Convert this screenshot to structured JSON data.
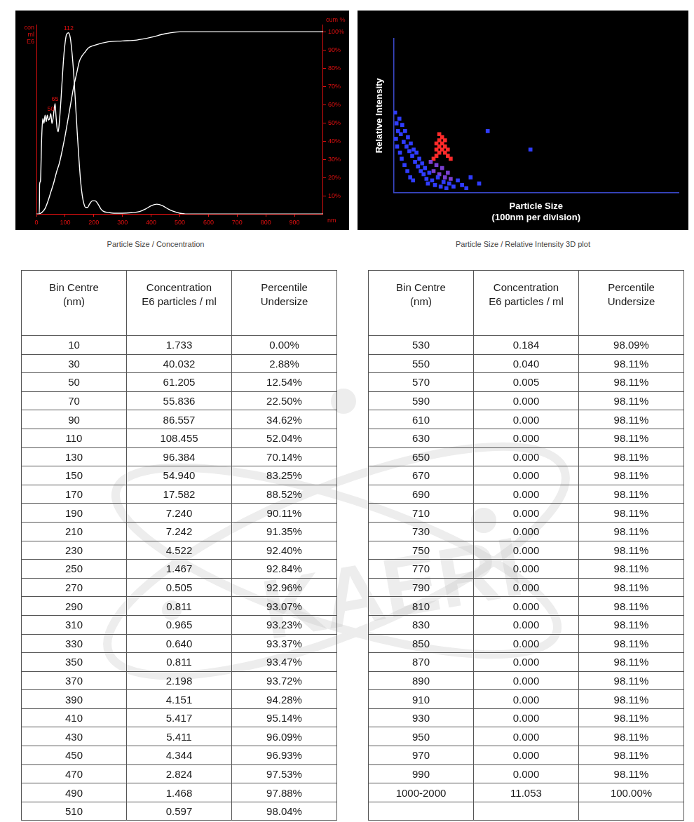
{
  "chart_data": [
    {
      "type": "line",
      "title": "Particle Size / Concentration",
      "ylabel": "con ml E6",
      "y2label": "cum %",
      "xlabel": "nm",
      "xlim": [
        0,
        1000
      ],
      "xticks": [
        0,
        100,
        200,
        300,
        400,
        500,
        600,
        700,
        800,
        900
      ],
      "ylim": [
        0,
        115
      ],
      "yticks": [],
      "y2lim": [
        0,
        104
      ],
      "y2ticks": [
        {
          "value": 10,
          "label": "10%"
        },
        {
          "value": 20,
          "label": "20%"
        },
        {
          "value": 30,
          "label": "30%"
        },
        {
          "value": 40,
          "label": "40%"
        },
        {
          "value": 50,
          "label": "50%"
        },
        {
          "value": 60,
          "label": "60%"
        },
        {
          "value": 70,
          "label": "70%"
        },
        {
          "value": 80,
          "label": "80%"
        },
        {
          "value": 90,
          "label": "90%"
        },
        {
          "value": 100,
          "label": "100%"
        }
      ],
      "grid": false,
      "series": [
        {
          "color": "#ffffff",
          "x": [
            0,
            10,
            11,
            14,
            18,
            22,
            26,
            30,
            34,
            38,
            42,
            46,
            50,
            54,
            58,
            62,
            65,
            68,
            72,
            76,
            80,
            85,
            90,
            95,
            100,
            105,
            112,
            118,
            124,
            130,
            136,
            142,
            148,
            154,
            160,
            166,
            172,
            178,
            185,
            195,
            205,
            215,
            225,
            235,
            250,
            270,
            300,
            330,
            360,
            380,
            400,
            420,
            440,
            460,
            480,
            500,
            520,
            1000
          ],
          "values": [
            0,
            0,
            18,
            20,
            45,
            58,
            55,
            60,
            56,
            60,
            57,
            58,
            61,
            55,
            58,
            64,
            67,
            60,
            52,
            50,
            56,
            68,
            82,
            95,
            104,
            109,
            110,
            107,
            98,
            85,
            68,
            50,
            34,
            20,
            11,
            6,
            4,
            4,
            6,
            8,
            8,
            6,
            3,
            1.5,
            1,
            0.5,
            0.5,
            0.8,
            1.5,
            3,
            5,
            6,
            5,
            3,
            1.5,
            0.5,
            0,
            0
          ]
        },
        {
          "color": "#ffffff",
          "axis": "y2",
          "x": [
            10,
            20,
            30,
            40,
            50,
            60,
            70,
            80,
            90,
            100,
            110,
            120,
            130,
            140,
            150,
            160,
            170,
            180,
            200,
            250,
            300,
            350,
            400,
            450,
            500,
            1000
          ],
          "values": [
            0,
            1,
            3,
            7,
            12,
            17,
            23,
            28,
            35,
            43,
            52,
            61,
            70,
            77,
            84,
            87,
            89,
            91,
            92.5,
            94.5,
            95,
            95.5,
            97,
            99,
            100,
            100
          ]
        }
      ],
      "annotations": [
        {
          "x": 112,
          "y": 110,
          "text": "112"
        },
        {
          "x": 65,
          "y": 67,
          "text": "65"
        },
        {
          "x": 50,
          "y": 61,
          "text": "50"
        }
      ]
    },
    {
      "type": "scatter",
      "title": "Particle Size / Relative Intensity 3D plot",
      "xlabel": [
        "Particle Size",
        "(100nm per division)"
      ],
      "ylabel": "Relative Intensity",
      "xlim": [
        0,
        1000
      ],
      "ylim": [
        0,
        100
      ],
      "tick_labels": false,
      "grid": false,
      "series": [
        {
          "color": "#2f3cff",
          "marker": "square",
          "x": [
            5,
            10,
            15,
            8,
            20,
            25,
            12,
            30,
            35,
            22,
            40,
            45,
            28,
            50,
            55,
            38,
            60,
            65,
            48,
            70,
            75,
            58,
            80,
            85,
            68,
            90,
            95,
            100,
            105,
            110,
            115,
            120,
            125,
            135,
            145,
            155,
            165,
            175,
            185,
            195,
            210,
            225,
            240,
            255,
            330,
            480,
            300,
            270
          ],
          "values": [
            52,
            45,
            40,
            35,
            48,
            38,
            30,
            44,
            33,
            26,
            40,
            30,
            22,
            36,
            27,
            18,
            32,
            24,
            14,
            28,
            20,
            10,
            26,
            17,
            8,
            22,
            14,
            19,
            12,
            16,
            9,
            6,
            13,
            8,
            5,
            10,
            4,
            7,
            3,
            6,
            4,
            8,
            5,
            3,
            40,
            28,
            6,
            10
          ]
        },
        {
          "color": "#7a3fd0",
          "marker": "square",
          "x": [
            130,
            140,
            150,
            160,
            170,
            180,
            190,
            200
          ],
          "values": [
            20,
            14,
            18,
            12,
            16,
            10,
            13,
            9
          ]
        },
        {
          "color": "#ff2a2a",
          "marker": "square",
          "x": [
            140,
            150,
            150,
            150,
            160,
            160,
            160,
            160,
            170,
            170,
            170,
            180,
            180,
            180,
            190,
            190,
            200
          ],
          "values": [
            22,
            24,
            28,
            32,
            26,
            30,
            34,
            38,
            28,
            32,
            36,
            26,
            30,
            34,
            24,
            28,
            22
          ]
        }
      ]
    }
  ],
  "tables": [
    {
      "columns": [
        [
          "Bin Centre",
          "(nm)"
        ],
        [
          "Concentration",
          "E6 particles / ml"
        ],
        [
          "Percentile",
          "Undersize"
        ]
      ],
      "rows": [
        [
          "10",
          "1.733",
          "0.00%"
        ],
        [
          "30",
          "40.032",
          "2.88%"
        ],
        [
          "50",
          "61.205",
          "12.54%"
        ],
        [
          "70",
          "55.836",
          "22.50%"
        ],
        [
          "90",
          "86.557",
          "34.62%"
        ],
        [
          "110",
          "108.455",
          "52.04%"
        ],
        [
          "130",
          "96.384",
          "70.14%"
        ],
        [
          "150",
          "54.940",
          "83.25%"
        ],
        [
          "170",
          "17.582",
          "88.52%"
        ],
        [
          "190",
          "7.240",
          "90.11%"
        ],
        [
          "210",
          "7.242",
          "91.35%"
        ],
        [
          "230",
          "4.522",
          "92.40%"
        ],
        [
          "250",
          "1.467",
          "92.84%"
        ],
        [
          "270",
          "0.505",
          "92.96%"
        ],
        [
          "290",
          "0.811",
          "93.07%"
        ],
        [
          "310",
          "0.965",
          "93.23%"
        ],
        [
          "330",
          "0.640",
          "93.37%"
        ],
        [
          "350",
          "0.811",
          "93.47%"
        ],
        [
          "370",
          "2.198",
          "93.72%"
        ],
        [
          "390",
          "4.151",
          "94.28%"
        ],
        [
          "410",
          "5.417",
          "95.14%"
        ],
        [
          "430",
          "5.411",
          "96.09%"
        ],
        [
          "450",
          "4.344",
          "96.93%"
        ],
        [
          "470",
          "2.824",
          "97.53%"
        ],
        [
          "490",
          "1.468",
          "97.88%"
        ],
        [
          "510",
          "0.597",
          "98.04%"
        ]
      ]
    },
    {
      "columns": [
        [
          "Bin Centre",
          "(nm)"
        ],
        [
          "Concentration",
          "E6 particles / ml"
        ],
        [
          "Percentile",
          "Undersize"
        ]
      ],
      "rows": [
        [
          "530",
          "0.184",
          "98.09%"
        ],
        [
          "550",
          "0.040",
          "98.11%"
        ],
        [
          "570",
          "0.005",
          "98.11%"
        ],
        [
          "590",
          "0.000",
          "98.11%"
        ],
        [
          "610",
          "0.000",
          "98.11%"
        ],
        [
          "630",
          "0.000",
          "98.11%"
        ],
        [
          "650",
          "0.000",
          "98.11%"
        ],
        [
          "670",
          "0.000",
          "98.11%"
        ],
        [
          "690",
          "0.000",
          "98.11%"
        ],
        [
          "710",
          "0.000",
          "98.11%"
        ],
        [
          "730",
          "0.000",
          "98.11%"
        ],
        [
          "750",
          "0.000",
          "98.11%"
        ],
        [
          "770",
          "0.000",
          "98.11%"
        ],
        [
          "790",
          "0.000",
          "98.11%"
        ],
        [
          "810",
          "0.000",
          "98.11%"
        ],
        [
          "830",
          "0.000",
          "98.11%"
        ],
        [
          "850",
          "0.000",
          "98.11%"
        ],
        [
          "870",
          "0.000",
          "98.11%"
        ],
        [
          "890",
          "0.000",
          "98.11%"
        ],
        [
          "910",
          "0.000",
          "98.11%"
        ],
        [
          "930",
          "0.000",
          "98.11%"
        ],
        [
          "950",
          "0.000",
          "98.11%"
        ],
        [
          "970",
          "0.000",
          "98.11%"
        ],
        [
          "990",
          "0.000",
          "98.11%"
        ],
        [
          "1000-2000",
          "11.053",
          "100.00%"
        ]
      ]
    }
  ],
  "watermark": "KAERI"
}
